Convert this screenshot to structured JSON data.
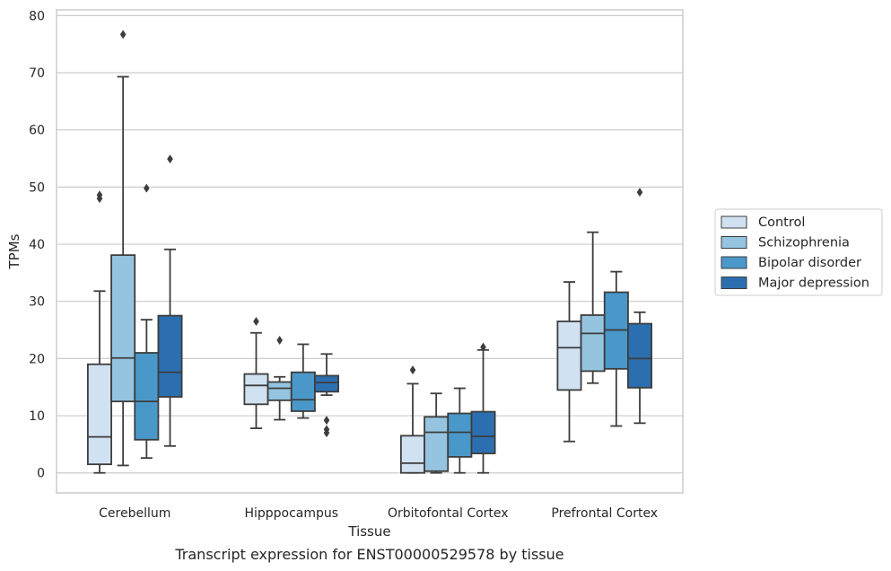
{
  "chart_data": {
    "type": "box",
    "xlabel": "Tissue",
    "ylabel": "TPMs",
    "caption": "Transcript expression for ENST00000529578 by tissue",
    "ylim": [
      -3.5,
      81
    ],
    "yticks": [
      0,
      10,
      20,
      30,
      40,
      50,
      60,
      70,
      80
    ],
    "grid": true,
    "legend_position": "right",
    "categories": [
      "Cerebellum",
      "Hipppocampus",
      "Orbitofontal Cortex",
      "Prefrontal Cortex"
    ],
    "series": [
      {
        "name": "Control",
        "color": "#d0e1f2",
        "boxes": [
          {
            "whislo": 0,
            "q1": 1.5,
            "med": 6.3,
            "q3": 19.0,
            "whishi": 31.8,
            "fliers": [
              48.0,
              48.6
            ]
          },
          {
            "whislo": 7.8,
            "q1": 12.0,
            "med": 15.3,
            "q3": 17.3,
            "whishi": 24.5,
            "fliers": [
              26.5
            ]
          },
          {
            "whislo": 0,
            "q1": 0,
            "med": 1.7,
            "q3": 6.5,
            "whishi": 15.6,
            "fliers": [
              18.0
            ]
          },
          {
            "whislo": 5.5,
            "q1": 14.5,
            "med": 21.9,
            "q3": 26.5,
            "whishi": 33.4,
            "fliers": []
          }
        ]
      },
      {
        "name": "Schizophrenia",
        "color": "#94c4df",
        "boxes": [
          {
            "whislo": 1.3,
            "q1": 12.5,
            "med": 20.1,
            "q3": 38.1,
            "whishi": 69.3,
            "fliers": [
              76.7
            ]
          },
          {
            "whislo": 9.3,
            "q1": 12.7,
            "med": 14.8,
            "q3": 15.9,
            "whishi": 16.8,
            "fliers": [
              23.2
            ]
          },
          {
            "whislo": 0,
            "q1": 0.3,
            "med": 7.1,
            "q3": 9.8,
            "whishi": 13.9,
            "fliers": []
          },
          {
            "whislo": 15.7,
            "q1": 17.8,
            "med": 24.4,
            "q3": 27.6,
            "whishi": 42.1,
            "fliers": []
          }
        ]
      },
      {
        "name": "Bipolar disorder",
        "color": "#4a98c9",
        "boxes": [
          {
            "whislo": 2.6,
            "q1": 5.8,
            "med": 12.5,
            "q3": 21.0,
            "whishi": 26.8,
            "fliers": [
              49.8
            ]
          },
          {
            "whislo": 9.6,
            "q1": 10.8,
            "med": 12.8,
            "q3": 17.6,
            "whishi": 22.5,
            "fliers": []
          },
          {
            "whislo": 0,
            "q1": 2.8,
            "med": 7.1,
            "q3": 10.4,
            "whishi": 14.8,
            "fliers": []
          },
          {
            "whislo": 8.2,
            "q1": 18.2,
            "med": 25.0,
            "q3": 31.6,
            "whishi": 35.2,
            "fliers": []
          }
        ]
      },
      {
        "name": "Major depression",
        "color": "#2c6fb0",
        "boxes": [
          {
            "whislo": 4.7,
            "q1": 13.3,
            "med": 17.6,
            "q3": 27.5,
            "whishi": 39.1,
            "fliers": [
              54.9
            ]
          },
          {
            "whislo": 13.6,
            "q1": 14.2,
            "med": 15.8,
            "q3": 17.0,
            "whishi": 20.8,
            "fliers": [
              7.0,
              7.6,
              9.2
            ]
          },
          {
            "whislo": 0,
            "q1": 3.4,
            "med": 6.4,
            "q3": 10.7,
            "whishi": 21.5,
            "fliers": [
              22.0
            ]
          },
          {
            "whislo": 8.7,
            "q1": 14.9,
            "med": 20.0,
            "q3": 26.1,
            "whishi": 28.1,
            "fliers": [
              49.1
            ]
          }
        ]
      }
    ]
  }
}
